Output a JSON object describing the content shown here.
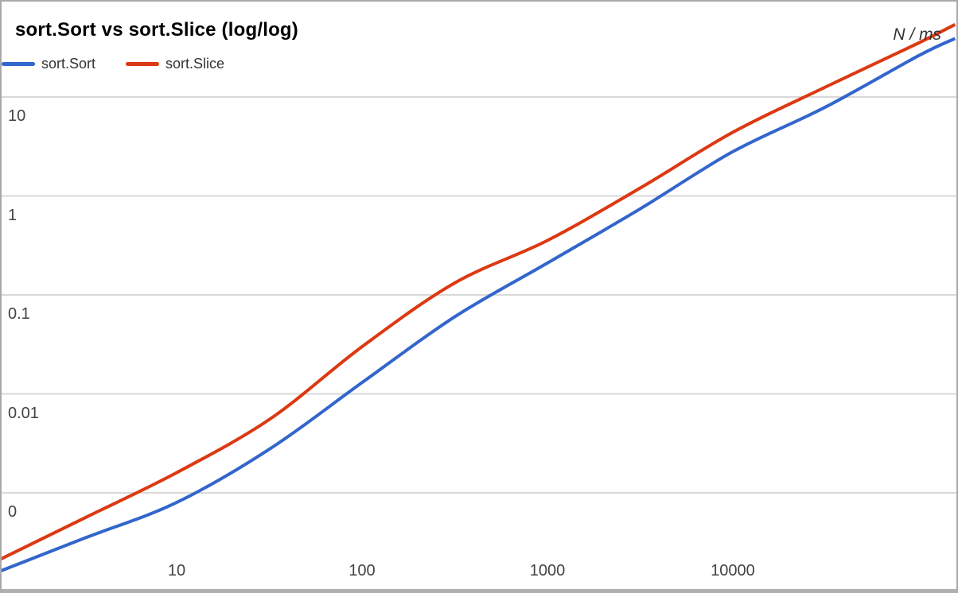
{
  "figure": {
    "unit_note": "N / ms"
  },
  "colors": {
    "background": "#ffffff",
    "frame_border": "#a9a9a9",
    "frame_border_bottom": "#b0b0b0",
    "gridline": "#d9d9d9",
    "title_text": "#000000",
    "legend_text": "#333333",
    "tick_text": "#434343"
  },
  "chart_data": {
    "type": "line",
    "title": "sort.Sort vs sort.Slice (log/log)",
    "xlabel": "N",
    "ylabel": "ms",
    "unit_note": "N / ms",
    "x_scale": "log",
    "y_scale": "log",
    "grid": true,
    "legend_position": "top-left",
    "x_ticks": [
      {
        "label": "10",
        "value": 10
      },
      {
        "label": "100",
        "value": 100
      },
      {
        "label": "1000",
        "value": 1000
      },
      {
        "label": "10000",
        "value": 10000
      }
    ],
    "y_ticks": [
      {
        "label": "10",
        "value": 10
      },
      {
        "label": "1",
        "value": 1
      },
      {
        "label": "0.1",
        "value": 0.1
      },
      {
        "label": "0.01",
        "value": 0.01
      },
      {
        "label": "0",
        "value": 0.001
      }
    ],
    "x_range": [
      1.1,
      160000
    ],
    "y_range": [
      0.00013,
      56
    ],
    "x": [
      1.1,
      3.2,
      10,
      32,
      100,
      316,
      1000,
      3160,
      10000,
      31600,
      100000,
      158000
    ],
    "series": [
      {
        "name": "sort.Sort",
        "color": "#3366cc",
        "values": [
          0.00016,
          0.00035,
          0.0008,
          0.0028,
          0.013,
          0.06,
          0.21,
          0.74,
          2.8,
          7.9,
          26,
          39
        ]
      },
      {
        "name": "sort.Slice",
        "color": "#dc3912",
        "values": [
          0.00021,
          0.00056,
          0.0016,
          0.0056,
          0.03,
          0.132,
          0.355,
          1.2,
          4.4,
          12.6,
          35,
          54
        ]
      }
    ]
  }
}
